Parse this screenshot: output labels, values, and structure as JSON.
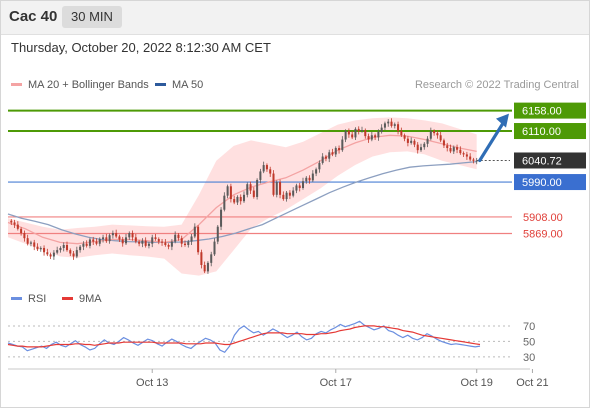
{
  "header": {
    "instrument": "Cac 40",
    "timeframe": "30 MIN"
  },
  "datetime": "Thursday, October 20, 2022 8:12:30 AM CET",
  "legend": {
    "ma20_label": "MA 20 + Bollinger Bands",
    "ma50_label": "MA 50"
  },
  "credit": "Research © 2022 Trading Central",
  "rsi_legend": {
    "rsi_label": "RSI",
    "ma_label": "9MA"
  },
  "colors": {
    "resistance": "#4e9a06",
    "support": "#f08080",
    "pivot": "#4a7fd4",
    "current": "#333333",
    "up": "#5a5a5a",
    "down": "#c0392b",
    "ma20": "#f4a3a3",
    "band": "#ffd6d6",
    "ma50": "#8c9fc0",
    "rsi": "#6b8fe0",
    "rsi_ma": "#e53935",
    "arrow": "#2f6db5"
  },
  "chart_data": [
    {
      "type": "candlestick",
      "title": "",
      "ylim": [
        5755,
        6190
      ],
      "x_ticks": [
        {
          "index": 43,
          "label": "Oct 13"
        },
        {
          "index": 99,
          "label": "Oct 17"
        },
        {
          "index": 142,
          "label": "Oct 19"
        },
        {
          "index": 159,
          "label": "Oct 21"
        }
      ],
      "levels": [
        {
          "value": 6158.0,
          "label": "6158.00",
          "kind": "resistance"
        },
        {
          "value": 6110.0,
          "label": "6110.00",
          "kind": "resistance"
        },
        {
          "value": 6040.72,
          "label": "6040.72",
          "kind": "current"
        },
        {
          "value": 5990.0,
          "label": "5990.00",
          "kind": "pivot"
        },
        {
          "value": 5908.0,
          "label": "5908.00",
          "kind": "support"
        },
        {
          "value": 5869.0,
          "label": "5869.00",
          "kind": "support"
        }
      ],
      "forecast_target": 6158.0,
      "close": [
        5895,
        5890,
        5880,
        5870,
        5858,
        5845,
        5848,
        5838,
        5832,
        5835,
        5825,
        5820,
        5815,
        5824,
        5830,
        5835,
        5842,
        5830,
        5822,
        5815,
        5830,
        5838,
        5845,
        5840,
        5855,
        5850,
        5845,
        5856,
        5860,
        5851,
        5865,
        5870,
        5862,
        5855,
        5846,
        5860,
        5870,
        5860,
        5850,
        5845,
        5852,
        5840,
        5845,
        5860,
        5856,
        5850,
        5848,
        5842,
        5838,
        5850,
        5866,
        5858,
        5845,
        5842,
        5850,
        5862,
        5885,
        5825,
        5795,
        5780,
        5800,
        5820,
        5850,
        5885,
        5925,
        5958,
        5980,
        5950,
        5942,
        5955,
        5945,
        5960,
        5985,
        5970,
        5955,
        5995,
        6015,
        6030,
        6020,
        6010,
        5960,
        5990,
        5960,
        5950,
        5965,
        5958,
        5970,
        5982,
        5976,
        5992,
        6000,
        5994,
        6010,
        6020,
        6035,
        6050,
        6045,
        6060,
        6055,
        6070,
        6065,
        6090,
        6110,
        6102,
        6095,
        6115,
        6110,
        6112,
        6098,
        6090,
        6100,
        6095,
        6108,
        6118,
        6128,
        6132,
        6122,
        6126,
        6110,
        6100,
        6092,
        6082,
        6087,
        6078,
        6065,
        6072,
        6080,
        6092,
        6110,
        6105,
        6100,
        6088,
        6076,
        6070,
        6062,
        6072,
        6066,
        6058,
        6055,
        6050,
        6043,
        6040,
        6040.72
      ],
      "ma50": [
        5915,
        5905,
        5898,
        5890,
        5878,
        5868,
        5860,
        5855,
        5852,
        5850,
        5849,
        5848,
        5848,
        5849,
        5852,
        5856,
        5862,
        5870,
        5880,
        5890,
        5905,
        5920,
        5935,
        5950,
        5965,
        5978,
        5990,
        6000,
        6010,
        6018,
        6025,
        6028,
        6030,
        6032,
        6035,
        6038
      ],
      "ma20": [
        5895,
        5880,
        5860,
        5848,
        5845,
        5850,
        5855,
        5855,
        5852,
        5848,
        5855,
        5890,
        5930,
        5960,
        5978,
        5990,
        6000,
        6018,
        6040,
        6065,
        6082,
        6095,
        6100,
        6098,
        6090,
        6080,
        6070,
        6062
      ],
      "bb_upper": [
        5905,
        5895,
        5885,
        5878,
        5882,
        5885,
        5890,
        5888,
        5886,
        5885,
        5890,
        5960,
        6040,
        6075,
        6088,
        6080,
        6072,
        6085,
        6105,
        6125,
        6135,
        6140,
        6142,
        6140,
        6135,
        6128,
        6115,
        6102
      ],
      "bb_lower": [
        5860,
        5845,
        5830,
        5815,
        5812,
        5818,
        5822,
        5818,
        5815,
        5810,
        5775,
        5770,
        5780,
        5830,
        5880,
        5905,
        5925,
        5950,
        5975,
        6005,
        6030,
        6050,
        6060,
        6062,
        6055,
        6040,
        6030,
        6020
      ]
    },
    {
      "type": "line",
      "title": "",
      "ylim": [
        17,
        88
      ],
      "y_ticks": [
        70,
        50,
        30
      ],
      "series": [
        {
          "name": "RSI",
          "values": [
            48,
            46,
            44,
            43,
            38,
            40,
            42,
            44,
            41,
            46,
            49,
            45,
            43,
            47,
            51,
            46,
            43,
            39,
            41,
            47,
            52,
            48,
            46,
            50,
            55,
            52,
            48,
            45,
            49,
            53,
            51,
            47,
            44,
            49,
            53,
            50,
            46,
            43,
            41,
            46,
            50,
            54,
            52,
            48,
            39,
            36,
            44,
            58,
            66,
            70,
            65,
            61,
            63,
            58,
            62,
            66,
            63,
            59,
            55,
            58,
            62,
            56,
            52,
            54,
            60,
            63,
            61,
            65,
            68,
            72,
            69,
            71,
            73,
            76,
            71,
            68,
            65,
            67,
            70,
            64,
            62,
            58,
            55,
            58,
            54,
            52,
            55,
            60,
            57,
            53,
            50,
            48,
            46,
            47,
            46,
            45,
            44,
            43,
            44
          ]
        },
        {
          "name": "9MA",
          "values": [
            46,
            45,
            44,
            44,
            43,
            43,
            43,
            43,
            44,
            45,
            46,
            46,
            46,
            46,
            47,
            47,
            46,
            46,
            45,
            46,
            47,
            48,
            48,
            48,
            49,
            49,
            49,
            49,
            49,
            49,
            49,
            48,
            48,
            48,
            48,
            48,
            48,
            47,
            47,
            47,
            47,
            48,
            48,
            48,
            47,
            46,
            46,
            48,
            50,
            52,
            54,
            56,
            58,
            60,
            61,
            61,
            61,
            61,
            60,
            60,
            60,
            60,
            59,
            59,
            59,
            60,
            60,
            61,
            62,
            64,
            65,
            66,
            68,
            69,
            70,
            70,
            70,
            69,
            69,
            68,
            67,
            66,
            64,
            63,
            62,
            60,
            58,
            57,
            56,
            55,
            54,
            53,
            52,
            51,
            50,
            49,
            48,
            47,
            46
          ]
        }
      ]
    }
  ]
}
